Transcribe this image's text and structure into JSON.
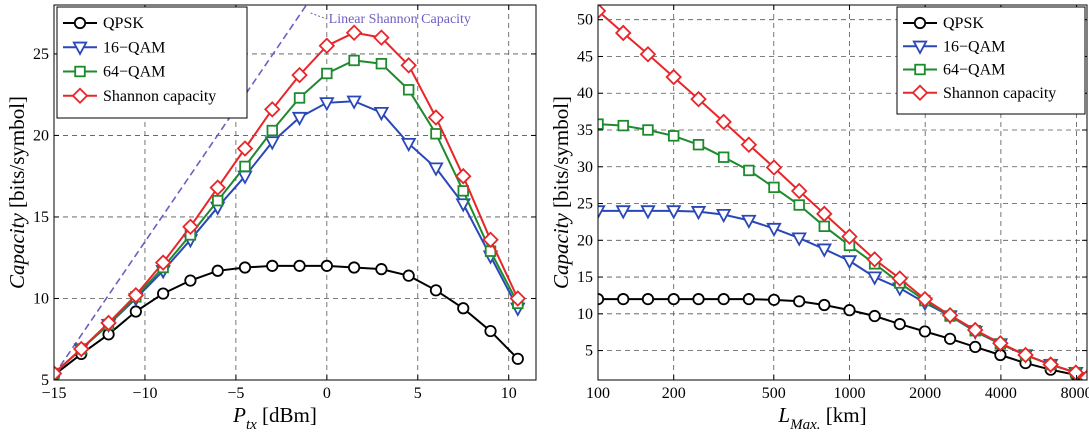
{
  "chart_data": [
    {
      "type": "line",
      "xlabel": {
        "main": "P",
        "sub": "tx",
        "unit": " [dBm]"
      },
      "ylabel": {
        "main": "Capacity",
        "unit": "[bits/symbol]"
      },
      "xlim": [
        -15,
        11.5
      ],
      "ylim": [
        5,
        28
      ],
      "xticks": [
        -15,
        -10,
        -5,
        0,
        5,
        10
      ],
      "xtick_labels": [
        "−15",
        "−10",
        "−5",
        "0",
        "5",
        "10"
      ],
      "yticks": [
        5,
        10,
        15,
        20,
        25
      ],
      "ytick_labels": [
        "5",
        "10",
        "15",
        "20",
        "25"
      ],
      "grid": true,
      "legend_position": "top-left",
      "annotation": {
        "text": "Linear Shannon Capacity",
        "color": "#6f5fc0"
      },
      "reference_line": {
        "x": [
          -15,
          -1
        ],
        "y": [
          5.3,
          28.2
        ],
        "color": "#6f5fc0"
      },
      "series": [
        {
          "name": "QPSK",
          "color": "#000000",
          "marker": "circle",
          "x": [
            -15,
            -13.5,
            -12,
            -10.5,
            -9,
            -7.5,
            -6,
            -4.5,
            -3,
            -1.5,
            0,
            1.5,
            3,
            4.5,
            6,
            7.5,
            9,
            10.5
          ],
          "y": [
            5.3,
            6.6,
            7.8,
            9.2,
            10.3,
            11.1,
            11.7,
            11.9,
            12.0,
            12.0,
            12.0,
            11.9,
            11.8,
            11.4,
            10.5,
            9.4,
            8.0,
            6.3
          ]
        },
        {
          "name": "16−QAM",
          "color": "#2a47b8",
          "marker": "triangle-down",
          "x": [
            -15,
            -13.5,
            -12,
            -10.5,
            -9,
            -7.5,
            -6,
            -4.5,
            -3,
            -1.5,
            0,
            1.5,
            3,
            4.5,
            6,
            7.5,
            9,
            10.5
          ],
          "y": [
            5.4,
            6.9,
            8.4,
            10.0,
            11.7,
            13.6,
            15.6,
            17.5,
            19.6,
            21.1,
            22.0,
            22.1,
            21.4,
            19.5,
            18.0,
            15.8,
            12.6,
            9.4
          ]
        },
        {
          "name": "64−QAM",
          "color": "#1e8a2e",
          "marker": "square",
          "x": [
            -15,
            -13.5,
            -12,
            -10.5,
            -9,
            -7.5,
            -6,
            -4.5,
            -3,
            -1.5,
            0,
            1.5,
            3,
            4.5,
            6,
            7.5,
            9,
            10.5
          ],
          "y": [
            5.4,
            6.9,
            8.4,
            10.1,
            11.9,
            13.9,
            16.0,
            18.1,
            20.3,
            22.3,
            23.8,
            24.6,
            24.4,
            22.8,
            20.1,
            16.6,
            12.9,
            9.7
          ]
        },
        {
          "name": "Shannon capacity",
          "color": "#e8262a",
          "marker": "diamond",
          "x": [
            -15,
            -13.5,
            -12,
            -10.5,
            -9,
            -7.5,
            -6,
            -4.5,
            -3,
            -1.5,
            0,
            1.5,
            3,
            4.5,
            6,
            7.5,
            9,
            10.5
          ],
          "y": [
            5.4,
            6.9,
            8.5,
            10.2,
            12.2,
            14.4,
            16.8,
            19.2,
            21.6,
            23.7,
            25.5,
            26.3,
            26.0,
            24.3,
            21.1,
            17.5,
            13.6,
            10.0
          ]
        }
      ]
    },
    {
      "type": "line",
      "xscale": "log",
      "xlabel": {
        "main": "L",
        "sub": "Max.",
        "unit": " [km]"
      },
      "ylabel": {
        "main": "Capacity",
        "unit": "[bits/symbol]"
      },
      "xlim": [
        100,
        8800
      ],
      "ylim": [
        1,
        52
      ],
      "xticks": [
        100,
        200,
        500,
        1000,
        2000,
        4000,
        8000
      ],
      "xtick_labels": [
        "100",
        "200",
        "500",
        "1000",
        "2000",
        "4000",
        "8000"
      ],
      "yticks": [
        5,
        10,
        15,
        20,
        25,
        30,
        35,
        40,
        45,
        50
      ],
      "ytick_labels": [
        "5",
        "10",
        "15",
        "20",
        "25",
        "30",
        "35",
        "40",
        "45",
        "50"
      ],
      "grid": true,
      "legend_position": "top-right",
      "series": [
        {
          "name": "QPSK",
          "color": "#000000",
          "marker": "circle",
          "x": [
            100,
            126,
            158,
            200,
            251,
            316,
            398,
            501,
            631,
            794,
            1000,
            1259,
            1585,
            1995,
            2512,
            3162,
            3981,
            5012,
            6310,
            7943,
            8800
          ],
          "y": [
            12.0,
            12.0,
            12.0,
            12.0,
            12.0,
            12.0,
            12.0,
            11.9,
            11.7,
            11.2,
            10.5,
            9.7,
            8.6,
            7.6,
            6.6,
            5.5,
            4.4,
            3.3,
            2.4,
            1.7,
            1.2
          ]
        },
        {
          "name": "16−QAM",
          "color": "#2a47b8",
          "marker": "triangle-down",
          "x": [
            100,
            126,
            158,
            200,
            251,
            316,
            398,
            501,
            631,
            794,
            1000,
            1259,
            1585,
            1995,
            2512,
            3162,
            3981,
            5012,
            6310,
            7943,
            8800
          ],
          "y": [
            24.0,
            24.0,
            24.0,
            24.0,
            23.9,
            23.5,
            22.7,
            21.6,
            20.3,
            18.8,
            17.2,
            15.0,
            13.5,
            11.5,
            9.7,
            7.6,
            5.9,
            4.4,
            3.1,
            2.0,
            1.3
          ]
        },
        {
          "name": "64−QAM",
          "color": "#1e8a2e",
          "marker": "square",
          "x": [
            100,
            126,
            158,
            200,
            251,
            316,
            398,
            501,
            631,
            794,
            1000,
            1259,
            1585,
            1995,
            2512,
            3162,
            3981,
            5012,
            6310,
            7943,
            8800
          ],
          "y": [
            35.8,
            35.6,
            35.0,
            34.2,
            33.0,
            31.3,
            29.5,
            27.2,
            24.8,
            21.9,
            19.3,
            16.8,
            14.2,
            11.8,
            9.7,
            7.7,
            5.9,
            4.4,
            3.1,
            2.0,
            1.3
          ]
        },
        {
          "name": "Shannon capacity",
          "color": "#e8262a",
          "marker": "diamond",
          "x": [
            100,
            126,
            158,
            200,
            251,
            316,
            398,
            501,
            631,
            794,
            1000,
            1259,
            1585,
            1995,
            2512,
            3162,
            3981,
            5012,
            6310,
            7943,
            8800
          ],
          "y": [
            51.2,
            48.2,
            45.3,
            42.2,
            39.2,
            36.1,
            33.0,
            29.9,
            26.7,
            23.6,
            20.5,
            17.4,
            14.8,
            12.0,
            9.8,
            7.8,
            6.0,
            4.4,
            3.1,
            2.0,
            1.3
          ]
        }
      ]
    }
  ]
}
